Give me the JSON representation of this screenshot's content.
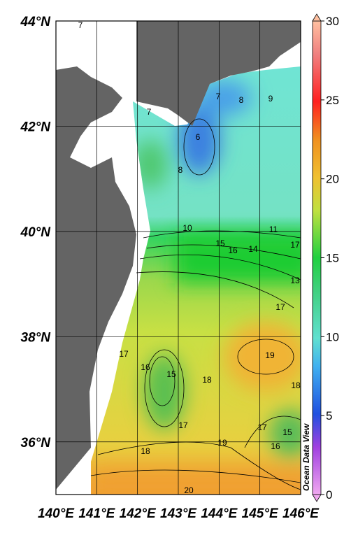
{
  "map": {
    "lon_range": [
      140,
      146
    ],
    "lat_range": [
      35,
      44
    ],
    "lon_ticks": [
      {
        "value": 140,
        "label": "140°E"
      },
      {
        "value": 141,
        "label": "141°E"
      },
      {
        "value": 142,
        "label": "142°E"
      },
      {
        "value": 143,
        "label": "143°E"
      },
      {
        "value": 144,
        "label": "144°E"
      },
      {
        "value": 145,
        "label": "145°E"
      },
      {
        "value": 146,
        "label": "146°E"
      }
    ],
    "lat_ticks": [
      {
        "value": 36,
        "label": "36°N"
      },
      {
        "value": 38,
        "label": "38°N"
      },
      {
        "value": 40,
        "label": "40°N"
      },
      {
        "value": 42,
        "label": "42°N"
      },
      {
        "value": 44,
        "label": "44°N"
      }
    ],
    "contour_labels": [
      7,
      7,
      8,
      9,
      7,
      6,
      8,
      10,
      11,
      15,
      16,
      14,
      17,
      13,
      17,
      17,
      16,
      15,
      18,
      19,
      18,
      17,
      15,
      16,
      17,
      18,
      19,
      20
    ],
    "colorbar": {
      "range": [
        0,
        30
      ],
      "ticks": [
        0,
        5,
        10,
        15,
        20,
        25,
        30
      ]
    },
    "watermark": "Ocean Data View"
  }
}
